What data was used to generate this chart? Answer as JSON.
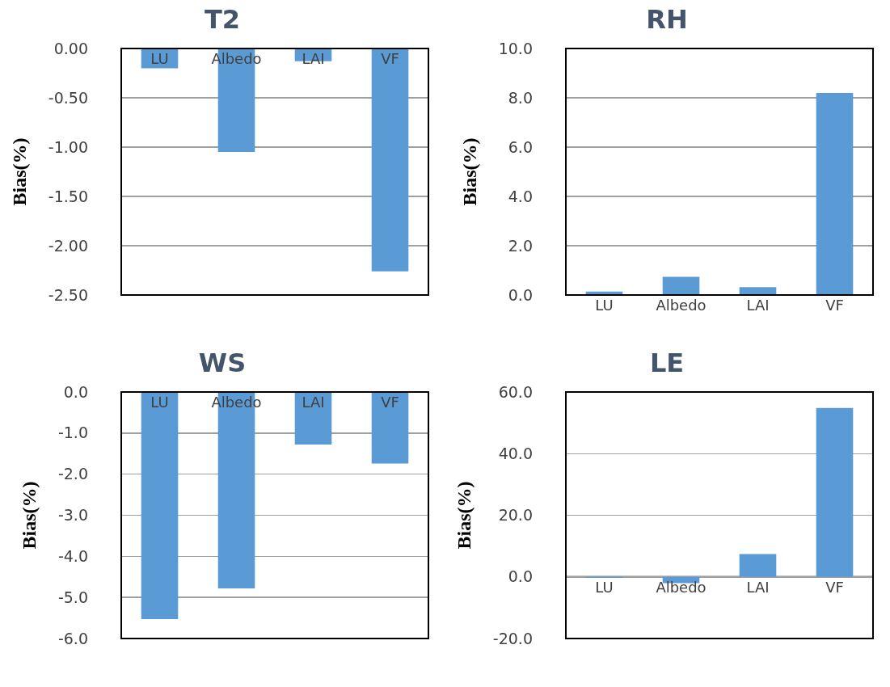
{
  "chart_data": [
    {
      "type": "bar",
      "title": "T2",
      "ylabel": "Bias(%)",
      "categories": [
        "LU",
        "Albedo",
        "LAI",
        "VF"
      ],
      "values": [
        -0.2,
        -1.05,
        -0.13,
        -2.26
      ],
      "color": "#5b9bd5",
      "ylim": [
        -2.5,
        0
      ],
      "yticks": [
        {
          "value": 0,
          "label": "0.00"
        },
        {
          "value": -0.5,
          "label": "-0.50"
        },
        {
          "value": -1,
          "label": "-1.00"
        },
        {
          "value": -1.5,
          "label": "-1.50"
        },
        {
          "value": -2,
          "label": "-2.00"
        },
        {
          "value": -2.5,
          "label": "-2.50"
        }
      ],
      "grid": "y",
      "legend": false
    },
    {
      "type": "bar",
      "title": "RH",
      "ylabel": "Bias(%)",
      "categories": [
        "LU",
        "Albedo",
        "LAI",
        "VF"
      ],
      "values": [
        0.14,
        0.74,
        0.32,
        8.2
      ],
      "color": "#5b9bd5",
      "ylim": [
        0,
        10
      ],
      "yticks": [
        {
          "value": 0,
          "label": "0.0"
        },
        {
          "value": 2,
          "label": "2.0"
        },
        {
          "value": 4,
          "label": "4.0"
        },
        {
          "value": 6,
          "label": "6.0"
        },
        {
          "value": 8,
          "label": "8.0"
        },
        {
          "value": 10,
          "label": "10.0"
        }
      ],
      "grid": "y",
      "legend": false
    },
    {
      "type": "bar",
      "title": "WS",
      "ylabel": "Bias(%)",
      "categories": [
        "LU",
        "Albedo",
        "LAI",
        "VF"
      ],
      "values": [
        -5.53,
        -4.78,
        -1.28,
        -1.74
      ],
      "color": "#5b9bd5",
      "ylim": [
        -6,
        0
      ],
      "yticks": [
        {
          "value": 0,
          "label": "0.0"
        },
        {
          "value": -1,
          "label": "-1.0"
        },
        {
          "value": -2,
          "label": "-2.0"
        },
        {
          "value": -3,
          "label": "-3.0"
        },
        {
          "value": -4,
          "label": "-4.0"
        },
        {
          "value": -5,
          "label": "-5.0"
        },
        {
          "value": -6,
          "label": "-6.0"
        }
      ],
      "grid": "y",
      "legend": false
    },
    {
      "type": "bar",
      "title": "LE",
      "ylabel": "Bias(%)",
      "categories": [
        "LU",
        "Albedo",
        "LAI",
        "VF"
      ],
      "values": [
        -0.3,
        -2,
        7.4,
        54.8
      ],
      "color": "#5b9bd5",
      "ylim": [
        -20,
        60
      ],
      "yticks": [
        {
          "value": -20,
          "label": "-20.0"
        },
        {
          "value": 0,
          "label": "0.0"
        },
        {
          "value": 20,
          "label": "20.0"
        },
        {
          "value": 40,
          "label": "40.0"
        },
        {
          "value": 60,
          "label": "60.0"
        }
      ],
      "grid": "y",
      "legend": false
    }
  ]
}
